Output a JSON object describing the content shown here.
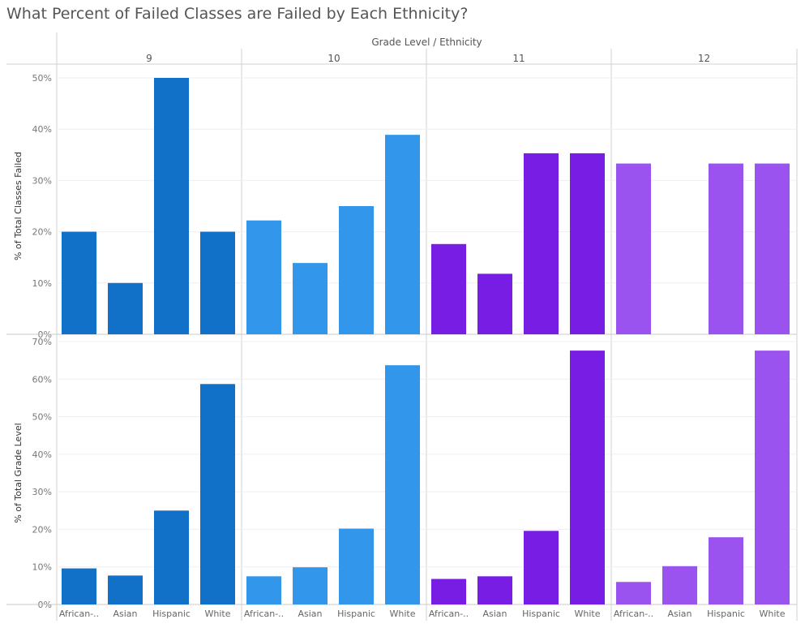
{
  "title": "What Percent of Failed Classes are Failed by Each Ethnicity?",
  "chart_data": {
    "type": "bar",
    "column_header": "Grade Level  /  Ethnicity",
    "categories": [
      "African-..",
      "Asian",
      "Hispanic",
      "White"
    ],
    "grades": [
      "9",
      "10",
      "11",
      "12"
    ],
    "colors": {
      "9": "#1170c8",
      "10": "#3296ea",
      "11": "#781de3",
      "12": "#9b53f0"
    },
    "panels": [
      {
        "ylabel": "% of Total Classes Failed",
        "ylim": [
          0,
          50
        ],
        "ticks": [
          0,
          10,
          20,
          30,
          40,
          50
        ],
        "tick_labels": [
          "0%",
          "10%",
          "20%",
          "30%",
          "40%",
          "50%"
        ],
        "series": [
          {
            "name": "9",
            "values": [
              20,
              10,
              50,
              20
            ]
          },
          {
            "name": "10",
            "values": [
              22.2,
              13.9,
              25,
              38.9
            ]
          },
          {
            "name": "11",
            "values": [
              17.6,
              11.8,
              35.3,
              35.3
            ]
          },
          {
            "name": "12",
            "values": [
              33.3,
              0,
              33.3,
              33.3
            ]
          }
        ]
      },
      {
        "ylabel": "% of Total Grade Level",
        "ylim": [
          0,
          70
        ],
        "ticks": [
          0,
          10,
          20,
          30,
          40,
          50,
          60,
          70
        ],
        "tick_labels": [
          "0%",
          "10%",
          "20%",
          "30%",
          "40%",
          "50%",
          "60%",
          "70%"
        ],
        "series": [
          {
            "name": "9",
            "values": [
              9.6,
              7.7,
              25,
              58.7
            ]
          },
          {
            "name": "10",
            "values": [
              7.5,
              9.9,
              20.2,
              63.7
            ]
          },
          {
            "name": "11",
            "values": [
              6.8,
              7.5,
              19.6,
              67.6
            ]
          },
          {
            "name": "12",
            "values": [
              6.0,
              10.2,
              17.9,
              67.6
            ]
          }
        ]
      }
    ]
  }
}
